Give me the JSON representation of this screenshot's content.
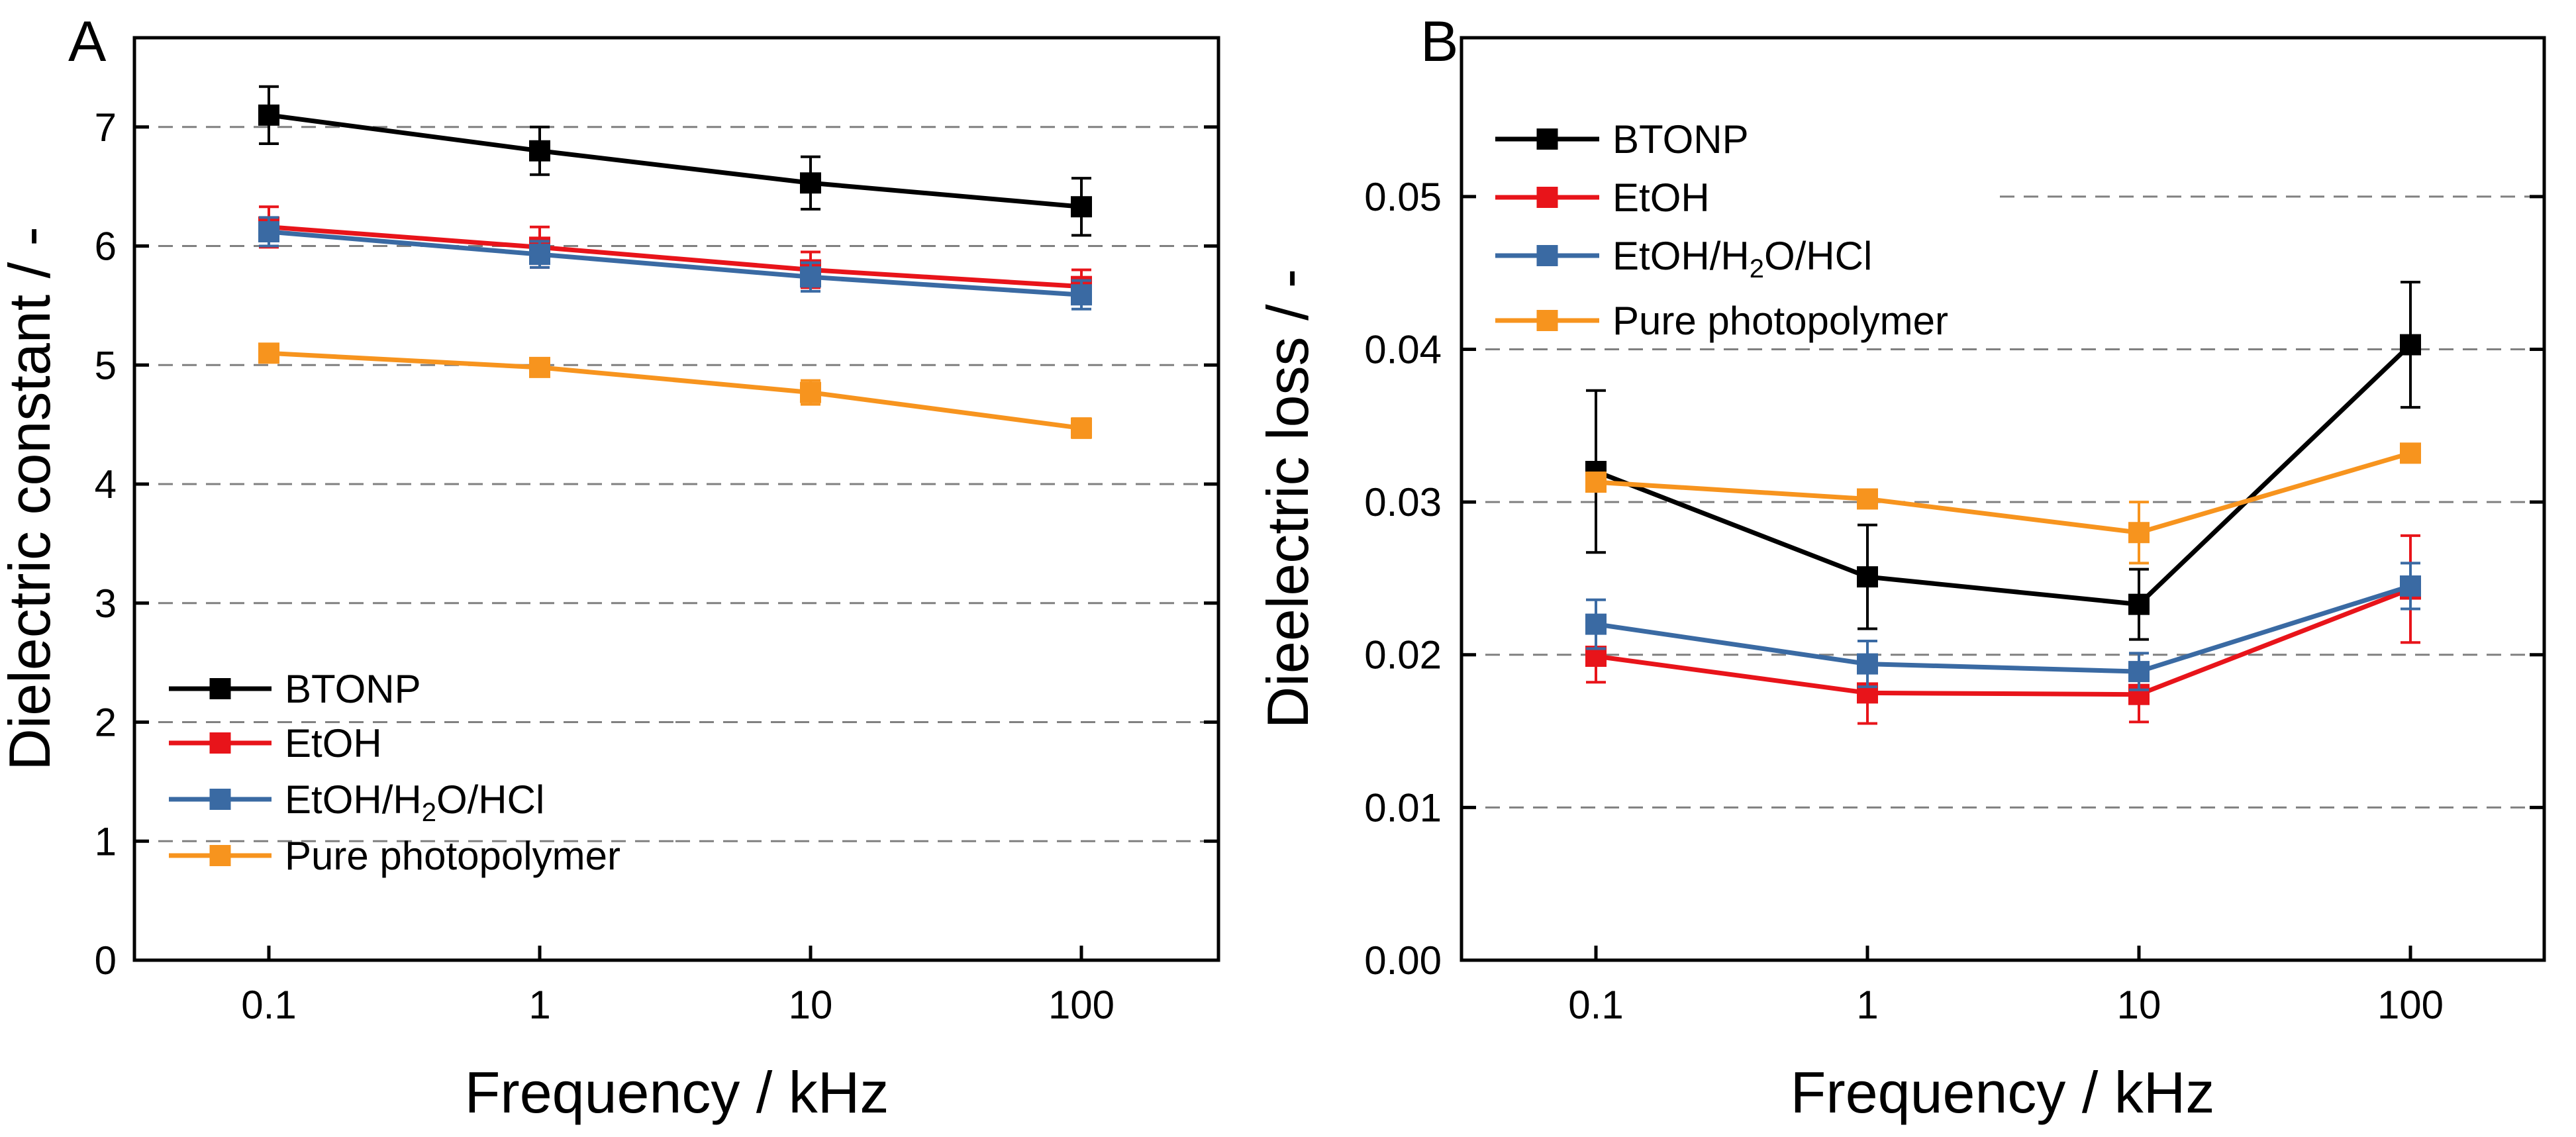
{
  "chart_data": [
    {
      "panel": "A",
      "type": "line",
      "xscale": "log",
      "x": [
        0.1,
        1,
        10,
        100
      ],
      "x_tick_labels": [
        "0.1",
        "1",
        "10",
        "100"
      ],
      "xlabel": "Frequency / kHz",
      "ylabel": "Dielectric constant / -",
      "ylim": [
        0,
        7.75
      ],
      "y_ticks": [
        0,
        1,
        2,
        3,
        4,
        5,
        6,
        7
      ],
      "y_tick_labels": [
        "0",
        "1",
        "2",
        "3",
        "4",
        "5",
        "6",
        "7"
      ],
      "grid": "dashed horizontal at major y ticks",
      "legend_position": "bottom-left",
      "series": [
        {
          "name": "BTONP",
          "sub": "",
          "tail": "",
          "color": "#000000",
          "values": [
            7.1,
            6.8,
            6.53,
            6.33
          ],
          "errors": [
            0.24,
            0.2,
            0.22,
            0.24
          ]
        },
        {
          "name": "EtOH",
          "sub": "",
          "tail": "",
          "color": "#e8141a",
          "values": [
            6.16,
            5.99,
            5.8,
            5.66
          ],
          "errors": [
            0.17,
            0.17,
            0.15,
            0.14
          ]
        },
        {
          "name": "EtOH/H",
          "sub": "2",
          "tail": "O/HCl",
          "color": "#3a6aa3",
          "values": [
            6.12,
            5.93,
            5.74,
            5.59
          ],
          "errors": [
            0.12,
            0.11,
            0.12,
            0.12
          ]
        },
        {
          "name": "Pure photopolymer",
          "sub": "",
          "tail": "",
          "color": "#f7941e",
          "values": [
            5.1,
            4.98,
            4.77,
            4.47
          ],
          "errors": [
            0.06,
            0.06,
            0.1,
            0.08
          ]
        }
      ]
    },
    {
      "panel": "B",
      "type": "line",
      "xscale": "log",
      "x": [
        0.1,
        1,
        10,
        100
      ],
      "x_tick_labels": [
        "0.1",
        "1",
        "10",
        "100"
      ],
      "xlabel": "Frequency / kHz",
      "ylabel": "Dieelectric loss / -",
      "ylim": [
        0,
        0.0604
      ],
      "y_ticks": [
        0,
        0.01,
        0.02,
        0.03,
        0.04,
        0.05
      ],
      "y_tick_labels": [
        "0.00",
        "0.01",
        "0.02",
        "0.03",
        "0.04",
        "0.05"
      ],
      "grid": "dashed horizontal at major y ticks",
      "legend_position": "top-left",
      "series": [
        {
          "name": "BTONP",
          "sub": "",
          "tail": "",
          "color": "#000000",
          "values": [
            0.032,
            0.0251,
            0.0233,
            0.0403
          ],
          "errors": [
            0.0053,
            0.0034,
            0.0023,
            0.0041
          ]
        },
        {
          "name": "EtOH",
          "sub": "",
          "tail": "",
          "color": "#e8141a",
          "values": [
            0.0199,
            0.0175,
            0.0174,
            0.0243
          ],
          "errors": [
            0.0017,
            0.002,
            0.0018,
            0.0035
          ]
        },
        {
          "name": "EtOH/H",
          "sub": "2",
          "tail": "O/HCl",
          "color": "#3a6aa3",
          "values": [
            0.022,
            0.0194,
            0.0189,
            0.0245
          ],
          "errors": [
            0.0016,
            0.0015,
            0.0012,
            0.0015
          ]
        },
        {
          "name": "Pure photopolymer",
          "sub": "",
          "tail": "",
          "color": "#f7941e",
          "values": [
            0.0313,
            0.0302,
            0.028,
            0.0332
          ],
          "errors": [
            0.0006,
            0.0006,
            0.002,
            0.0006
          ]
        }
      ]
    }
  ]
}
